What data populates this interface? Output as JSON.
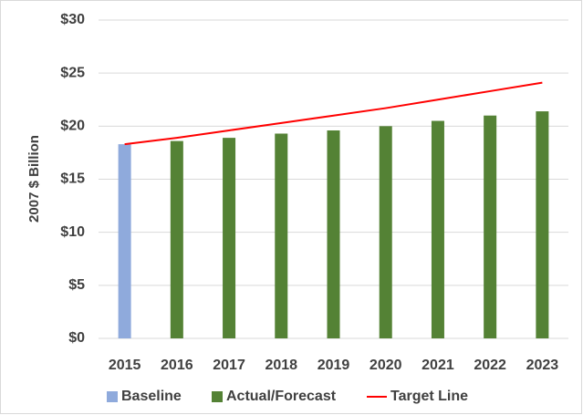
{
  "chart_data": {
    "type": "bar",
    "ylabel": "2007 $ Billion",
    "categories": [
      "2015",
      "2016",
      "2017",
      "2018",
      "2019",
      "2020",
      "2021",
      "2022",
      "2023"
    ],
    "series": [
      {
        "name": "Baseline",
        "color": "#8faadc",
        "values": [
          18.3,
          null,
          null,
          null,
          null,
          null,
          null,
          null,
          null
        ]
      },
      {
        "name": "Actual/Forecast",
        "color": "#548235",
        "values": [
          null,
          18.6,
          18.9,
          19.3,
          19.6,
          20.0,
          20.5,
          21.0,
          21.4
        ]
      },
      {
        "name": "Target Line",
        "type": "line",
        "color": "#ff0000",
        "values": [
          18.3,
          18.9,
          19.6,
          20.3,
          21.0,
          21.7,
          22.5,
          23.3,
          24.1
        ]
      }
    ],
    "ylim": [
      0,
      30
    ],
    "yticks": [
      {
        "value": 0,
        "label": "$0"
      },
      {
        "value": 5,
        "label": "$5"
      },
      {
        "value": 10,
        "label": "$10"
      },
      {
        "value": 15,
        "label": "$15"
      },
      {
        "value": 20,
        "label": "$20"
      },
      {
        "value": 25,
        "label": "$25"
      },
      {
        "value": 30,
        "label": "$30"
      }
    ],
    "grid": true,
    "legend": "bottom"
  }
}
